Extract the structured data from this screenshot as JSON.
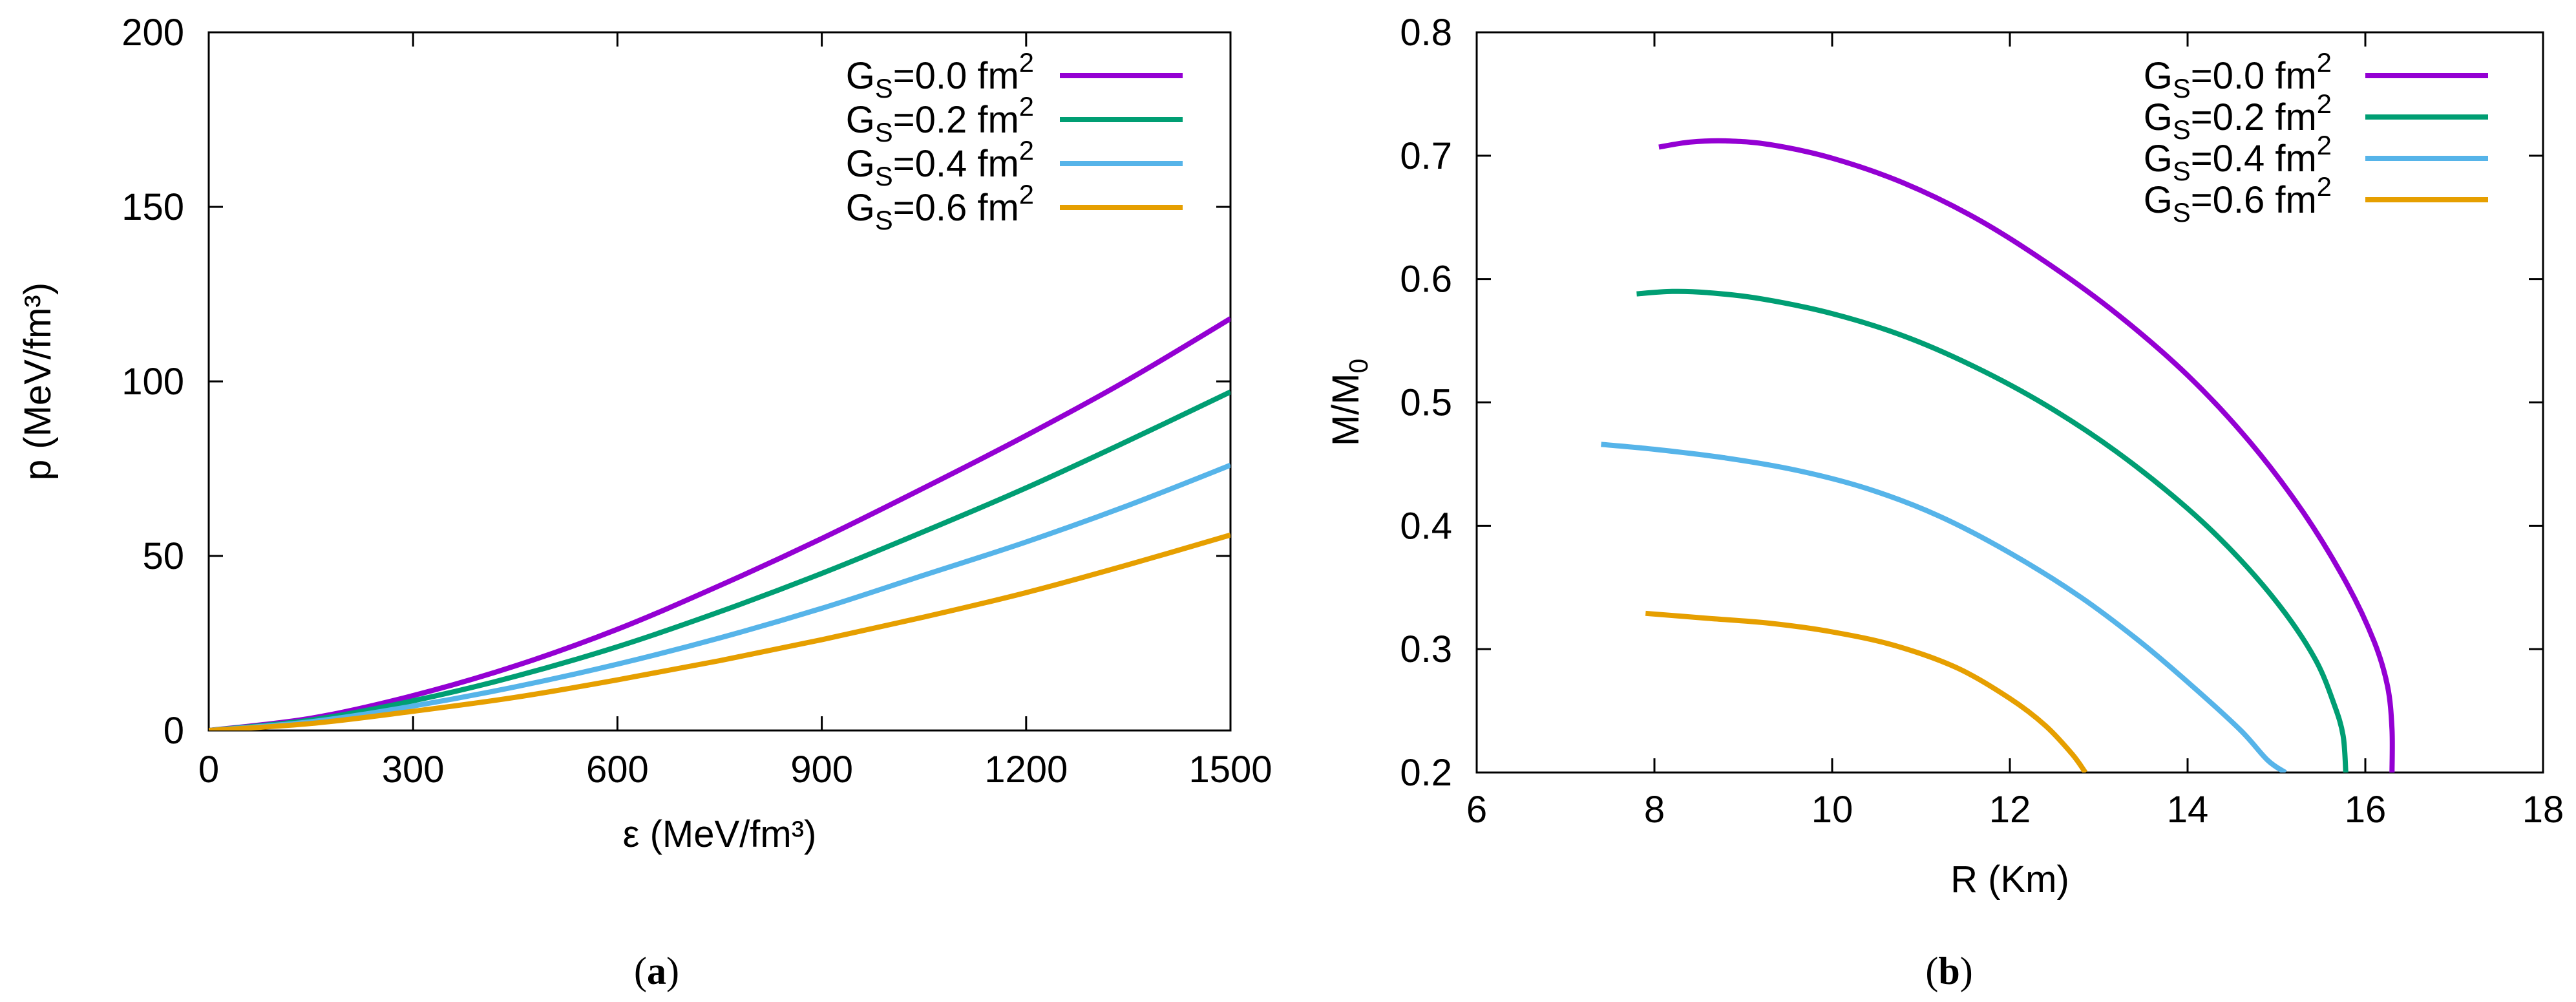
{
  "figure": {
    "panels": [
      {
        "caption_label": "a",
        "caption_open": "(",
        "caption_close": ")"
      },
      {
        "caption_label": "b",
        "caption_open": "(",
        "caption_close": ")"
      }
    ]
  },
  "chart_data": [
    {
      "type": "line",
      "panel": "a",
      "xlabel": "ε  (MeV/fm³)",
      "ylabel": "p  (MeV/fm³)",
      "xlim": [
        0,
        1500
      ],
      "ylim": [
        0,
        200
      ],
      "xticks": [
        0,
        300,
        600,
        900,
        1200,
        1500
      ],
      "yticks": [
        0,
        50,
        100,
        150,
        200
      ],
      "grid": false,
      "legend": "top-right",
      "series": [
        {
          "name": "GS=0.0 fm2",
          "label_main": "G",
          "label_sub": "S",
          "label_value": "=0.0 fm",
          "label_sup": "2",
          "color": "#9400d3",
          "x": [
            0,
            150,
            300,
            450,
            600,
            750,
            900,
            1050,
            1200,
            1350,
            1500
          ],
          "y": [
            0,
            3.5,
            10,
            18.5,
            29,
            41.5,
            55,
            69.5,
            84.5,
            100.5,
            118
          ]
        },
        {
          "name": "GS=0.2 fm2",
          "label_main": "G",
          "label_sub": "S",
          "label_value": "=0.2 fm",
          "label_sup": "2",
          "color": "#009e73",
          "x": [
            0,
            150,
            300,
            450,
            600,
            750,
            900,
            1050,
            1200,
            1350,
            1500
          ],
          "y": [
            0,
            3,
            8.5,
            15.5,
            24,
            34,
            45,
            57,
            69.5,
            83,
            97
          ]
        },
        {
          "name": "GS=0.4 fm2",
          "label_main": "G",
          "label_sub": "S",
          "label_value": "=0.4 fm",
          "label_sup": "2",
          "color": "#56b4e9",
          "x": [
            0,
            150,
            300,
            450,
            600,
            750,
            900,
            1050,
            1200,
            1350,
            1500
          ],
          "y": [
            0,
            2.5,
            7,
            12.5,
            19,
            26.5,
            35,
            44.5,
            54,
            64.5,
            76
          ]
        },
        {
          "name": "GS=0.6 fm2",
          "label_main": "G",
          "label_sub": "S",
          "label_value": "=0.6 fm",
          "label_sup": "2",
          "color": "#e69f00",
          "x": [
            0,
            150,
            300,
            450,
            600,
            750,
            900,
            1050,
            1200,
            1350,
            1500
          ],
          "y": [
            0,
            2,
            5.5,
            9.5,
            14.5,
            20,
            26,
            32.5,
            39.5,
            47.5,
            56
          ]
        }
      ]
    },
    {
      "type": "line",
      "panel": "b",
      "xlabel": "R  (Km)",
      "ylabel": "M/M0",
      "ylabel_main": "M/M",
      "ylabel_sub": "0",
      "xlim": [
        6,
        18
      ],
      "ylim": [
        0.2,
        0.8
      ],
      "xticks": [
        6,
        8,
        10,
        12,
        14,
        16,
        18
      ],
      "yticks": [
        0.2,
        0.3,
        0.4,
        0.5,
        0.6,
        0.7,
        0.8
      ],
      "grid": false,
      "legend": "top-right",
      "series": [
        {
          "name": "GS=0.0 fm2",
          "label_main": "G",
          "label_sub": "S",
          "label_value": "=0.0 fm",
          "label_sup": "2",
          "color": "#9400d3",
          "x": [
            8.05,
            8.4,
            8.8,
            9.3,
            10.0,
            10.8,
            11.6,
            12.4,
            13.2,
            14.0,
            14.7,
            15.3,
            15.8,
            16.1,
            16.25,
            16.3,
            16.3
          ],
          "y": [
            0.707,
            0.711,
            0.712,
            0.709,
            0.698,
            0.678,
            0.65,
            0.614,
            0.572,
            0.522,
            0.468,
            0.411,
            0.352,
            0.306,
            0.27,
            0.235,
            0.2
          ]
        },
        {
          "name": "GS=0.2 fm2",
          "label_main": "G",
          "label_sub": "S",
          "label_value": "=0.2 fm",
          "label_sup": "2",
          "color": "#009e73",
          "x": [
            7.8,
            8.2,
            8.6,
            9.2,
            10.0,
            10.8,
            11.6,
            12.4,
            13.2,
            14.0,
            14.6,
            15.1,
            15.45,
            15.65,
            15.75,
            15.78
          ],
          "y": [
            0.588,
            0.59,
            0.589,
            0.584,
            0.572,
            0.554,
            0.529,
            0.498,
            0.46,
            0.414,
            0.372,
            0.329,
            0.29,
            0.255,
            0.23,
            0.2
          ]
        },
        {
          "name": "GS=0.4 fm2",
          "label_main": "G",
          "label_sub": "S",
          "label_value": "=0.4 fm",
          "label_sup": "2",
          "color": "#56b4e9",
          "x": [
            7.4,
            8.0,
            8.8,
            9.6,
            10.4,
            11.2,
            12.0,
            12.8,
            13.5,
            14.1,
            14.6,
            14.9,
            15.1
          ],
          "y": [
            0.466,
            0.462,
            0.455,
            0.445,
            0.43,
            0.408,
            0.378,
            0.342,
            0.304,
            0.267,
            0.234,
            0.21,
            0.2
          ]
        },
        {
          "name": "GS=0.6 fm2",
          "label_main": "G",
          "label_sub": "S",
          "label_value": "=0.6 fm",
          "label_sup": "2",
          "color": "#e69f00",
          "x": [
            7.9,
            8.6,
            9.3,
            10.0,
            10.7,
            11.4,
            12.0,
            12.4,
            12.7,
            12.85
          ],
          "y": [
            0.329,
            0.325,
            0.321,
            0.314,
            0.303,
            0.285,
            0.26,
            0.238,
            0.215,
            0.2
          ]
        }
      ]
    }
  ]
}
